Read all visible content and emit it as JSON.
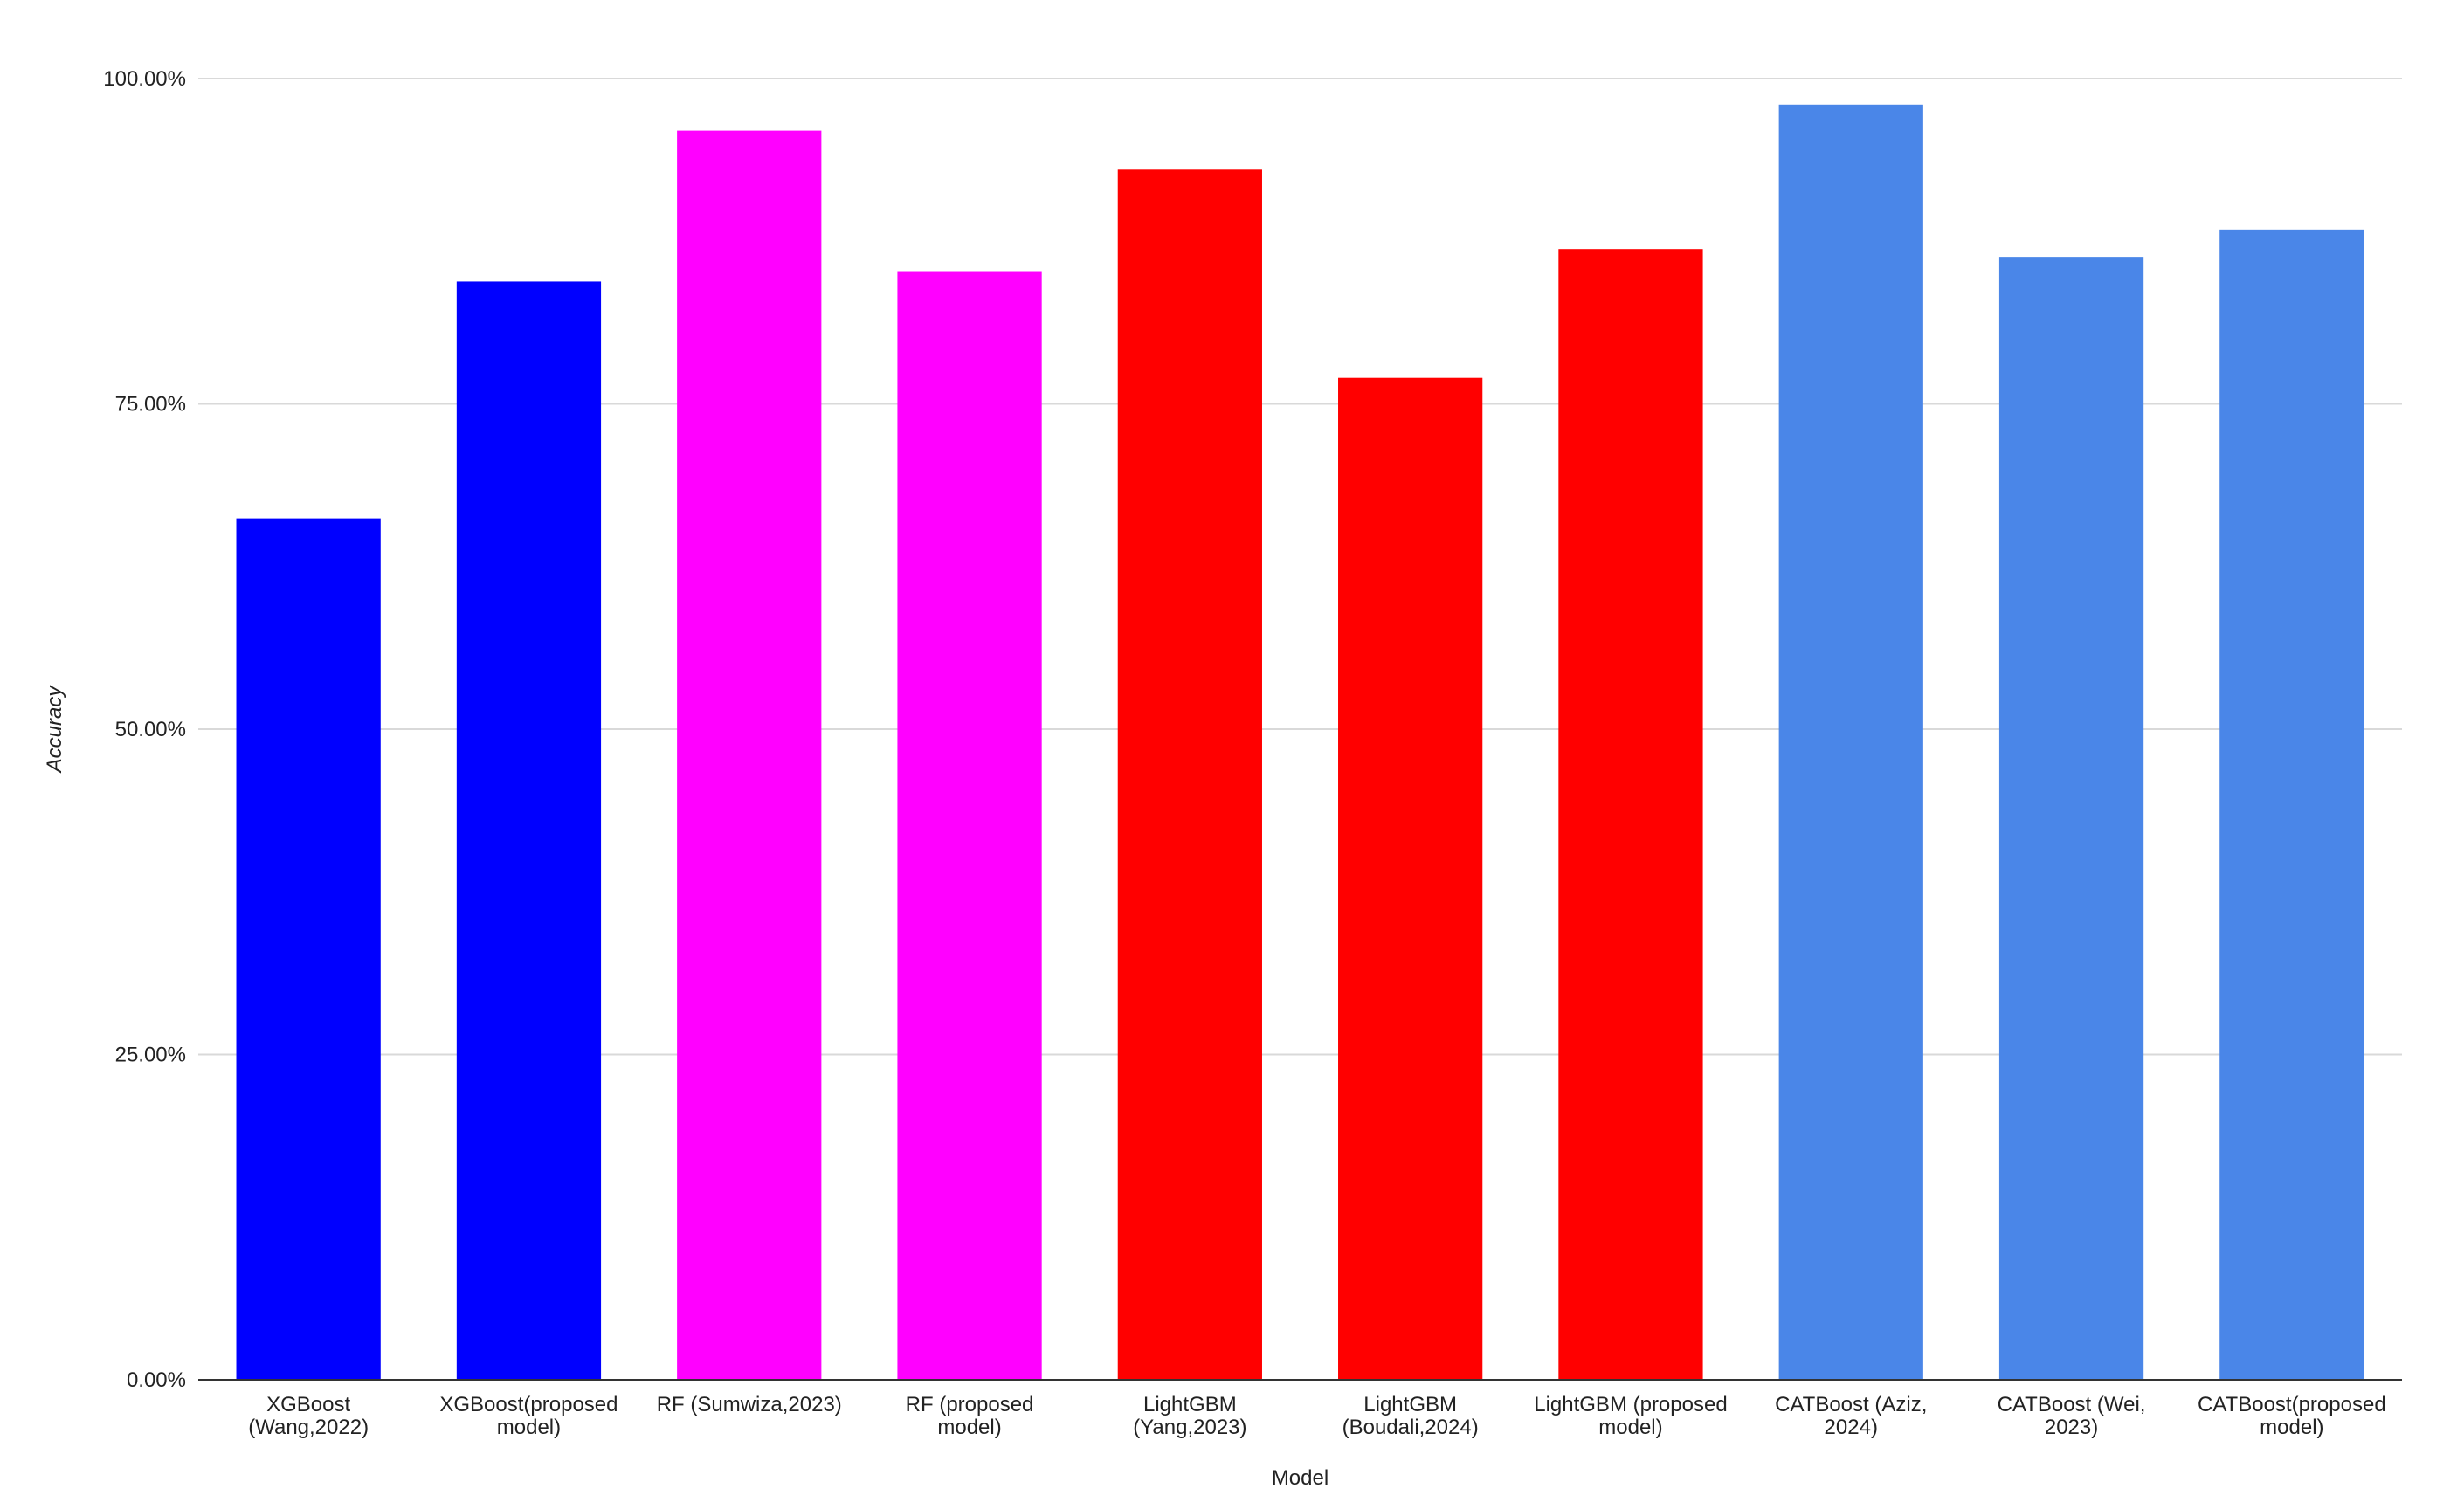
{
  "chart_data": {
    "type": "bar",
    "title": "",
    "xlabel": "Model",
    "ylabel": "Accuracy",
    "ylim": [
      0,
      100
    ],
    "yticks": [
      "0.00%",
      "25.00%",
      "50.00%",
      "75.00%",
      "100.00%"
    ],
    "ytick_values": [
      0,
      25,
      50,
      75,
      100
    ],
    "grid": true,
    "legend": "none",
    "categories": [
      [
        "XGBoost",
        "(Wang,2022)"
      ],
      [
        "XGBoost(proposed",
        "model)"
      ],
      [
        "RF (Sumwiza,2023)"
      ],
      [
        "RF (proposed",
        "model)"
      ],
      [
        "LightGBM",
        "(Yang,2023)"
      ],
      [
        "LightGBM",
        "(Boudali,2024)"
      ],
      [
        "LightGBM (proposed",
        "model)"
      ],
      [
        "CATBoost (Aziz,",
        "2024)"
      ],
      [
        "CATBoost (Wei,",
        "2023)"
      ],
      [
        "CATBoost(proposed",
        "model)"
      ]
    ],
    "values": [
      66.2,
      84.4,
      96.0,
      85.2,
      93.0,
      77.0,
      86.9,
      98.0,
      86.3,
      88.4
    ],
    "colors": [
      "#0000ff",
      "#0000ff",
      "#ff00ff",
      "#ff00ff",
      "#ff0000",
      "#ff0000",
      "#ff0000",
      "#4a86e8",
      "#4a86e8",
      "#4a86e8"
    ],
    "gridline_color": "#d9d9d9",
    "axis_color": "#333333"
  }
}
